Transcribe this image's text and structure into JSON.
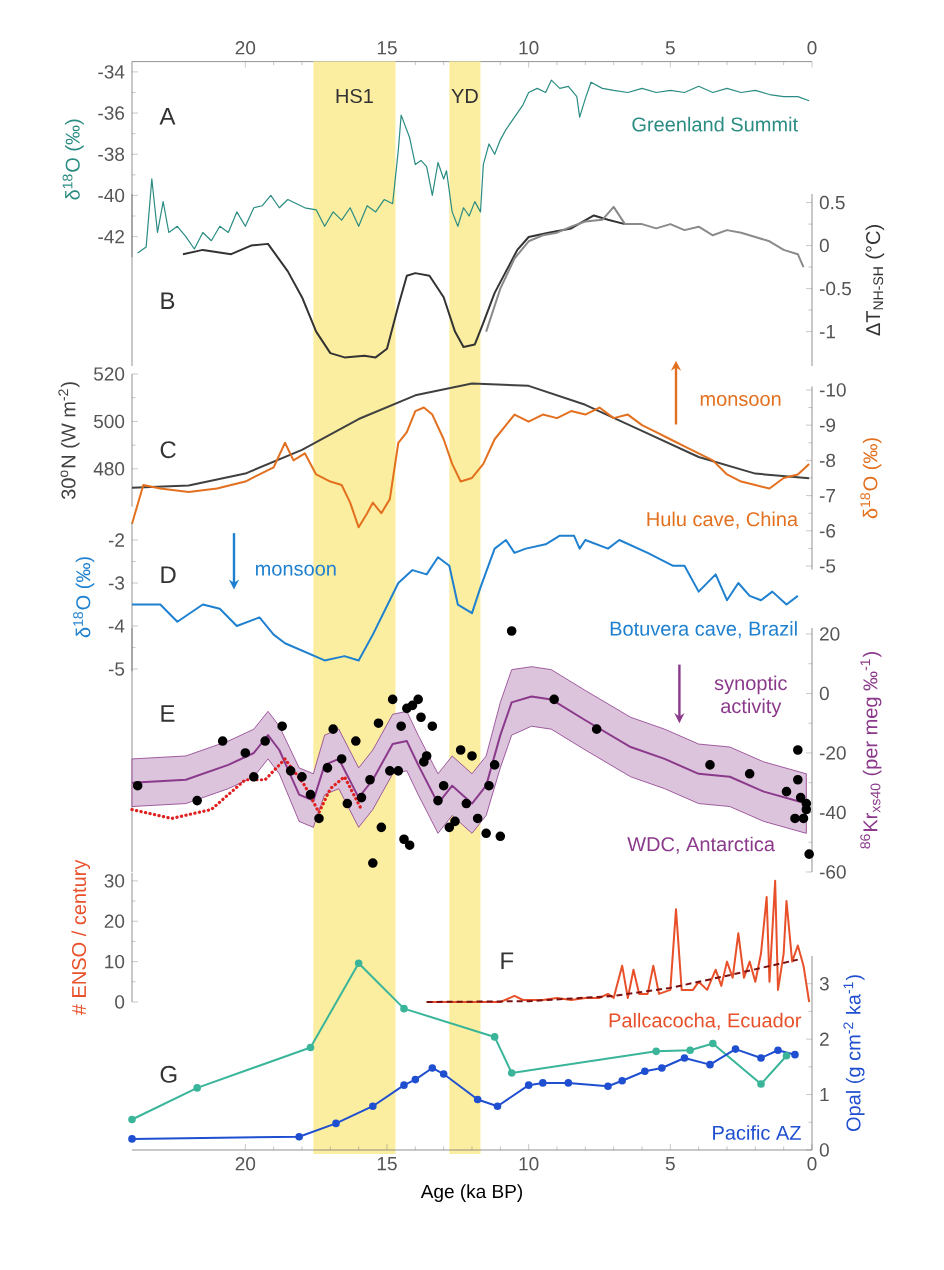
{
  "chart_data": [
    {
      "type": "line",
      "xlim": [
        24,
        0
      ],
      "xticks": [
        20,
        15,
        10,
        5,
        0
      ],
      "ylim": [
        -43,
        -33.5
      ],
      "yticks": [
        -42,
        -40,
        -38,
        -36,
        -34
      ],
      "ylabel": "δ$^{18}$O (‰)",
      "annotations": [
        "A"
      ],
      "bands": [
        {
          "axis": "x",
          "from": 17.6,
          "to": 14.7,
          "label": "HS1",
          "color": "#fbeea0"
        },
        {
          "axis": "x",
          "from": 12.8,
          "to": 11.7,
          "label": "YD",
          "color": "#fbeea0"
        }
      ],
      "series": [
        {
          "name": "Greenland Summit",
          "color": "#2a8c82",
          "x": [
            23.8,
            23.5,
            23.3,
            23.1,
            22.9,
            22.7,
            22.4,
            22.1,
            21.8,
            21.5,
            21.2,
            20.9,
            20.6,
            20.3,
            20.0,
            19.7,
            19.4,
            19.1,
            18.8,
            18.5,
            18.2,
            17.9,
            17.5,
            17.2,
            16.9,
            16.6,
            16.3,
            16.0,
            15.7,
            15.4,
            15.1,
            14.8,
            14.6,
            14.5,
            14.2,
            14.0,
            13.8,
            13.6,
            13.4,
            13.2,
            13.0,
            12.9,
            12.7,
            12.5,
            12.3,
            12.1,
            11.9,
            11.7,
            11.6,
            11.4,
            11.2,
            11.0,
            10.8,
            10.5,
            10.2,
            10.0,
            9.7,
            9.4,
            9.2,
            8.9,
            8.6,
            8.3,
            8.2,
            8.0,
            7.8,
            7.4,
            7.0,
            6.5,
            6.0,
            5.5,
            5.0,
            4.5,
            4.0,
            3.5,
            3.0,
            2.5,
            2.0,
            1.5,
            1.0,
            0.5,
            0.1
          ],
          "values": [
            -42.8,
            -42.5,
            -39.2,
            -41.8,
            -40.3,
            -41.8,
            -41.5,
            -42,
            -42.6,
            -41.8,
            -42.2,
            -41.5,
            -41.8,
            -40.8,
            -41.5,
            -40.6,
            -40.5,
            -40,
            -40.6,
            -40.2,
            -40.4,
            -40.6,
            -40.7,
            -41.5,
            -40.8,
            -41.2,
            -40.6,
            -41.5,
            -40.5,
            -40.8,
            -40.2,
            -40.4,
            -37.8,
            -36.1,
            -37.2,
            -38.5,
            -38.3,
            -38.6,
            -40,
            -38.4,
            -39.2,
            -38.8,
            -40.8,
            -41.5,
            -40.6,
            -41,
            -40.3,
            -40.8,
            -38.5,
            -37.5,
            -38,
            -37.3,
            -36.8,
            -36.2,
            -35.6,
            -35,
            -34.8,
            -35,
            -34.4,
            -34.8,
            -34.7,
            -35.2,
            -36.2,
            -35.3,
            -34.5,
            -34.8,
            -34.9,
            -35,
            -34.8,
            -35,
            -34.9,
            -35,
            -34.7,
            -35,
            -34.8,
            -35,
            -34.9,
            -35.1,
            -35.2,
            -35.2,
            -35.4
          ]
        }
      ]
    },
    {
      "type": "line",
      "xlim": [
        24,
        0
      ],
      "ylim": [
        -1.4,
        0.6
      ],
      "yticks": [
        -1,
        -0.5,
        0,
        0.5
      ],
      "ylabel": "ΔT$_{NH-SH}$ (°C)",
      "tick_labels": "y",
      "annotations": [
        "B"
      ],
      "series": [
        {
          "color": "#333333",
          "x": [
            22.2,
            21.5,
            20.5,
            19.8,
            19.2,
            18.5,
            18,
            17.5,
            17,
            16.5,
            15.8,
            15.4,
            15,
            14.6,
            14.3,
            14,
            13.5,
            13,
            12.6,
            12.3,
            11.9,
            11.6,
            11.2,
            10.8,
            10.4,
            10,
            9.3,
            8.5,
            7.7,
            7.2,
            6.6
          ],
          "values": [
            -0.1,
            -0.05,
            -0.1,
            0,
            0.02,
            -0.3,
            -0.6,
            -1,
            -1.25,
            -1.3,
            -1.28,
            -1.3,
            -1.2,
            -0.7,
            -0.35,
            -0.32,
            -0.35,
            -0.6,
            -1,
            -1.18,
            -1.15,
            -0.9,
            -0.55,
            -0.3,
            -0.05,
            0.1,
            0.15,
            0.2,
            0.35,
            0.3,
            0.25
          ]
        },
        {
          "color": "#8a8a8a",
          "x": [
            11.5,
            11,
            10.5,
            10,
            9.5,
            9,
            8.5,
            8,
            7.4,
            7,
            6.6,
            6,
            5.5,
            5,
            4.5,
            4,
            3.5,
            3,
            2.5,
            2,
            1.5,
            1,
            0.5,
            0.3
          ],
          "values": [
            -1,
            -0.5,
            -0.15,
            0.05,
            0.12,
            0.15,
            0.22,
            0.28,
            0.3,
            0.45,
            0.25,
            0.25,
            0.2,
            0.25,
            0.18,
            0.22,
            0.12,
            0.18,
            0.15,
            0.1,
            0.05,
            -0.05,
            -0.1,
            -0.25
          ]
        }
      ]
    },
    {
      "type": "line",
      "xlim": [
        24,
        0
      ],
      "ylim": [
        464,
        520
      ],
      "yticks": [
        480,
        500,
        520
      ],
      "y2lim": [
        -4.9,
        -10.1
      ],
      "y2ticks": [
        -10,
        -9,
        -8,
        -7,
        -6,
        -5
      ],
      "ylabel": "30$^{o}$N (W m$^{-2}$)",
      "y2label": "δ$^{18}$O (‰)",
      "tick_labels": "y",
      "annotations": [
        "C",
        "monsoon"
      ],
      "series": [
        {
          "color": "#404040",
          "x": [
            24,
            22,
            20,
            18,
            16,
            14,
            12,
            10,
            8,
            6,
            4,
            2,
            0.1
          ],
          "values": [
            472,
            473,
            478,
            488,
            501,
            511,
            516,
            515,
            507,
            496,
            485,
            478,
            476
          ]
        },
        {
          "name": "Hulu cave, China",
          "color": "#e2701e",
          "axis": "y2",
          "x": [
            24,
            23.6,
            23,
            22,
            21,
            20,
            19.5,
            19,
            18.6,
            18.3,
            17.9,
            17.5,
            17,
            16.6,
            16.3,
            16,
            15.7,
            15.5,
            15.2,
            14.9,
            14.6,
            14.3,
            14,
            13.7,
            13.4,
            13,
            12.7,
            12.4,
            12,
            11.6,
            11.2,
            10.8,
            10.5,
            10,
            9.5,
            9,
            8.5,
            8,
            7.5,
            7,
            6.5,
            6,
            5.5,
            5,
            4.5,
            4,
            3.5,
            3,
            2.5,
            2,
            1.5,
            1,
            0.5,
            0.1
          ],
          "values": [
            -6.2,
            -7.3,
            -7.2,
            -7.1,
            -7.2,
            -7.4,
            -7.6,
            -7.8,
            -8.5,
            -8.0,
            -8.2,
            -7.6,
            -7.4,
            -7.3,
            -6.8,
            -6.1,
            -6.5,
            -6.8,
            -6.5,
            -6.9,
            -8.5,
            -8.8,
            -9.4,
            -9.5,
            -9.3,
            -8.6,
            -7.9,
            -7.4,
            -7.5,
            -7.9,
            -8.6,
            -9.0,
            -9.3,
            -9.1,
            -9.3,
            -9.2,
            -9.4,
            -9.3,
            -9.5,
            -9.2,
            -9.3,
            -9.0,
            -8.8,
            -8.6,
            -8.4,
            -8.2,
            -8.0,
            -7.6,
            -7.4,
            -7.3,
            -7.2,
            -7.5,
            -7.6,
            -7.9
          ]
        }
      ]
    },
    {
      "type": "line",
      "xlim": [
        24,
        0
      ],
      "ylim": [
        -5.05,
        -1.6
      ],
      "yticks": [
        -5,
        -4,
        -3,
        -2
      ],
      "ylabel": "δ$^{18}$O (‰)",
      "tick_labels": "y",
      "annotations": [
        "D",
        "monsoon"
      ],
      "series": [
        {
          "name": "Botuvera cave, Brazil",
          "color": "#1f80d0",
          "x": [
            24,
            23,
            22.4,
            21.5,
            20.9,
            20.3,
            19.5,
            19,
            18.6,
            17.2,
            16.5,
            16,
            15.5,
            14.6,
            14.1,
            13.6,
            13.2,
            12.8,
            12.5,
            12,
            11.7,
            11.2,
            10.8,
            10.5,
            10.1,
            9.4,
            8.9,
            8.4,
            8.2,
            8,
            7.2,
            6.8,
            5.8,
            4.9,
            4.5,
            4,
            3.4,
            3,
            2.6,
            2.2,
            1.8,
            1.4,
            0.9,
            0.5
          ],
          "values": [
            -3.5,
            -3.5,
            -3.9,
            -3.5,
            -3.6,
            -4.0,
            -3.8,
            -4.2,
            -4.4,
            -4.8,
            -4.7,
            -4.8,
            -4.2,
            -3.0,
            -2.7,
            -2.8,
            -2.4,
            -2.6,
            -3.5,
            -3.7,
            -3.1,
            -2.2,
            -2.0,
            -2.3,
            -2.2,
            -2.1,
            -1.9,
            -1.9,
            -2.2,
            -2.0,
            -2.2,
            -2.0,
            -2.3,
            -2.6,
            -2.6,
            -3.2,
            -2.8,
            -3.4,
            -3.0,
            -3.3,
            -3.4,
            -3.2,
            -3.5,
            -3.3
          ]
        }
      ]
    },
    {
      "type": "line",
      "xlim": [
        24,
        0
      ],
      "ylim": [
        -60,
        22
      ],
      "yticks": [
        -60,
        -40,
        -20,
        0,
        20
      ],
      "ylabel": "$^{86}$Kr$_{xs40}$ (per meg ‰$^{-1}$)",
      "tick_labels": "y",
      "annotations": [
        "E",
        "synoptic activity"
      ],
      "series": [
        {
          "name": "WDC, Antarctica",
          "color": "#8b3a8b",
          "x": [
            24,
            22.1,
            20.6,
            19.7,
            19.2,
            18.8,
            18.1,
            17.6,
            17.2,
            16.7,
            16,
            15.5,
            14.8,
            14.3,
            13.9,
            13.2,
            12.7,
            12,
            11.5,
            11,
            10.6,
            9.9,
            9.2,
            8,
            6.4,
            5.2,
            4,
            2.9,
            1.7,
            0.2
          ],
          "values": [
            -30,
            -29,
            -24,
            -20,
            -14,
            -19,
            -34,
            -36,
            -24,
            -22,
            -35,
            -29,
            -17,
            -16,
            -24,
            -37,
            -31,
            -37,
            -31,
            -14,
            -3,
            -1,
            -2,
            -9,
            -18,
            -22,
            -27,
            -28,
            -33,
            -37
          ],
          "upper": [
            -22,
            -21,
            -16,
            -12,
            -6,
            -11,
            -25,
            -27,
            -14,
            -12,
            -25,
            -19,
            -7,
            -6,
            -14,
            -27,
            -21,
            -27,
            -21,
            -3,
            8,
            9,
            8,
            1,
            -8,
            -12,
            -17,
            -18,
            -23,
            -27
          ],
          "lower": [
            -38,
            -37,
            -32,
            -28,
            -22,
            -27,
            -43,
            -45,
            -34,
            -32,
            -45,
            -39,
            -27,
            -26,
            -34,
            -47,
            -41,
            -47,
            -41,
            -25,
            -14,
            -11,
            -12,
            -19,
            -28,
            -32,
            -37,
            -38,
            -43,
            -47
          ]
        },
        {
          "color": "#e02020",
          "line_style": "dotted",
          "x": [
            24,
            22.6,
            21.2,
            20,
            19.3,
            18.6,
            17.9,
            17.4,
            17,
            16.5,
            15.9
          ],
          "values": [
            -39,
            -42,
            -39,
            -29,
            -29,
            -22,
            -31,
            -40,
            -32,
            -28,
            -39
          ]
        },
        {
          "type": "scatter",
          "marker": "circle",
          "color": "#000000",
          "x": [
            23.8,
            21.7,
            20.8,
            20,
            19.7,
            19.3,
            18.7,
            18.4,
            18,
            17.7,
            17.4,
            17.1,
            16.9,
            16.6,
            16.4,
            16.1,
            15.9,
            15.6,
            15.5,
            15.3,
            15.2,
            14.9,
            14.8,
            14.6,
            14.5,
            14.4,
            14.3,
            14.2,
            14.1,
            13.9,
            13.8,
            13.7,
            13.6,
            13.4,
            13.2,
            13,
            12.8,
            12.6,
            12.4,
            12.2,
            12,
            11.8,
            11.5,
            11.4,
            11.2,
            11,
            10.6,
            9.1,
            7.6,
            3.6,
            2.2,
            0.9,
            0.5,
            0.5,
            0.4,
            0.3,
            0.2,
            0.2,
            0.1,
            0.6
          ],
          "values": [
            -31,
            -36,
            -16,
            -20,
            -28,
            -16,
            -11,
            -26,
            -28,
            -34,
            -42,
            -25,
            -12,
            -22,
            -37,
            -16,
            -35,
            -29,
            -57,
            -10,
            -45,
            -26,
            -2,
            -26,
            -11,
            -49,
            -5,
            -51,
            -4,
            -2,
            -8,
            -23,
            -21,
            -11,
            -36,
            -31,
            -45,
            -43,
            -19,
            -37,
            -21,
            -42,
            -47,
            -31,
            -24,
            -48,
            21,
            -2,
            -12,
            -24,
            -27,
            -33,
            -19,
            -29,
            -35,
            -42,
            -39,
            -37,
            -54,
            -42
          ]
        }
      ]
    },
    {
      "type": "line",
      "xlim": [
        24,
        0
      ],
      "ylim": [
        0,
        32
      ],
      "yticks": [
        0,
        10,
        20,
        30
      ],
      "ylabel": "# ENSO / century",
      "tick_labels": "y",
      "annotations": [
        "F"
      ],
      "series": [
        {
          "name": "Pallcacocha, Ecuador",
          "color": "#e8502a",
          "x": [
            13.6,
            11,
            10.5,
            10.2,
            9.5,
            9,
            8.5,
            8,
            7.5,
            7.2,
            7,
            6.7,
            6.5,
            6.3,
            6.1,
            5.8,
            5.6,
            5.4,
            5,
            4.8,
            4.6,
            4.2,
            4,
            3.7,
            3.4,
            3.2,
            3,
            2.8,
            2.6,
            2.4,
            2.2,
            2,
            1.8,
            1.6,
            1.5,
            1.3,
            1.2,
            1,
            0.9,
            0.7,
            0.5,
            0.3,
            0.1
          ],
          "values": [
            0,
            0,
            1.5,
            0.5,
            0.5,
            1,
            0.5,
            1,
            1,
            2,
            1,
            9,
            1,
            8,
            2,
            2,
            9,
            2,
            3,
            23,
            3,
            3,
            5,
            3,
            8,
            4,
            10,
            6,
            17,
            6,
            10,
            5,
            12,
            26,
            5,
            30,
            3,
            12,
            25,
            10,
            14,
            9,
            0
          ]
        },
        {
          "color": "#7a1010",
          "line_style": "dashed",
          "x": [
            13.6,
            10,
            7,
            5,
            3,
            0.5
          ],
          "values": [
            0,
            0.2,
            1.5,
            3.5,
            6.5,
            10.5
          ]
        }
      ]
    },
    {
      "type": "line",
      "xlim": [
        24,
        0
      ],
      "xticks": [
        20,
        15,
        10,
        5,
        0
      ],
      "xlabel": "Age (ka BP)",
      "ylim": [
        0,
        3.5
      ],
      "yticks": [
        0,
        1,
        2,
        3
      ],
      "ylabel": "Opal (g cm$^{-2}$ ka$^{-1}$)",
      "marker": "circle",
      "annotations": [
        "G"
      ],
      "series": [
        {
          "color": "#3ab59a",
          "x": [
            24,
            21.7,
            17.7,
            16,
            14.4,
            11.2,
            10.6,
            5.5,
            4.3,
            3.5,
            1.8,
            0.9
          ],
          "values": [
            0.55,
            1.12,
            1.85,
            3.37,
            2.55,
            2.04,
            1.39,
            1.78,
            1.8,
            1.92,
            1.19,
            1.7
          ]
        },
        {
          "name": "Pacific AZ",
          "color": "#1f4fd0",
          "x": [
            24,
            18.1,
            16.8,
            15.5,
            14.4,
            14,
            13.4,
            13,
            11.8,
            11.1,
            10,
            9.5,
            8.6,
            7.2,
            6.7,
            5.9,
            5.3,
            4.5,
            3.6,
            2.7,
            1.8,
            1.2,
            0.6
          ],
          "values": [
            0.2,
            0.24,
            0.48,
            0.79,
            1.17,
            1.27,
            1.48,
            1.37,
            0.91,
            0.79,
            1.17,
            1.21,
            1.21,
            1.15,
            1.25,
            1.42,
            1.48,
            1.66,
            1.54,
            1.82,
            1.66,
            1.8,
            1.72
          ]
        }
      ]
    }
  ]
}
